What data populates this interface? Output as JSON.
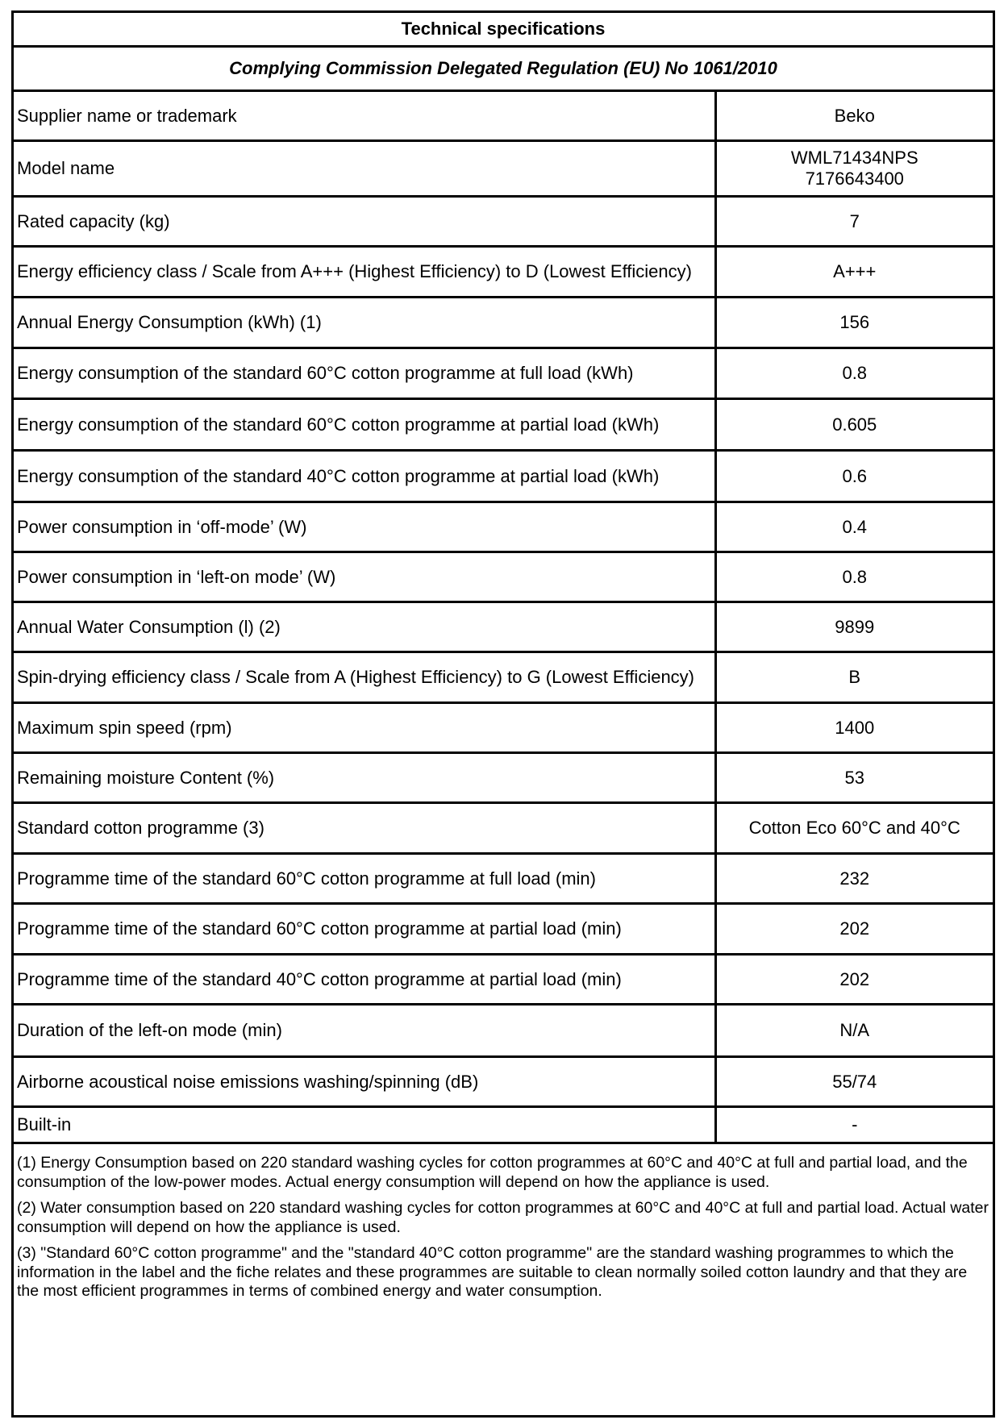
{
  "title": "Technical specifications",
  "subtitle": "Complying Commission Delegated Regulation (EU) No 1061/2010",
  "rows": [
    {
      "label": "Supplier name or trademark",
      "value": "Beko"
    },
    {
      "label": "Model name",
      "value": "WML71434NPS",
      "value2": "7176643400"
    },
    {
      "label": "Rated capacity (kg)",
      "value": "7"
    },
    {
      "label": "Energy efficiency class /  Scale from A+++ (Highest Efficiency) to D (Lowest Efficiency)",
      "value": "A+++"
    },
    {
      "label": "Annual Energy Consumption (kWh) (1)",
      "value": "156"
    },
    {
      "label": "Energy consumption of the standard 60°C cotton programme at full load  (kWh)",
      "value": "0.8"
    },
    {
      "label": "Energy consumption of the standard 60°C cotton programme at partial load (kWh)",
      "value": "0.605"
    },
    {
      "label": "Energy consumption of the standard 40°C cotton programme at partial load (kWh)",
      "value": "0.6"
    },
    {
      "label": "Power consumption in ‘off-mode’ (W)",
      "value": "0.4"
    },
    {
      "label": "Power consumption in ‘left-on mode’ (W)",
      "value": "0.8"
    },
    {
      "label": "Annual Water Consumption (l) (2)",
      "value": "9899"
    },
    {
      "label": "Spin-drying efficiency class / Scale from A (Highest Efficiency) to G (Lowest Efficiency)",
      "value": "B"
    },
    {
      "label": "Maximum spin speed (rpm)",
      "value": "1400"
    },
    {
      "label": "Remaining moisture Content (%)",
      "value": "53"
    },
    {
      "label": "Standard cotton programme (3)",
      "value": "Cotton Eco 60°C and 40°C"
    },
    {
      "label": "Programme time of the standard 60°C cotton programme at full load (min)",
      "value": "232"
    },
    {
      "label": "Programme time of the standard 60°C cotton programme at partial load (min)",
      "value": "202"
    },
    {
      "label": "Programme time of the standard 40°C cotton programme at partial load (min)",
      "value": "202"
    },
    {
      "label": "Duration of the left-on mode (min)",
      "value": "N/A"
    },
    {
      "label": "Airborne acoustical noise emissions washing/spinning (dB)",
      "value": "55/74"
    },
    {
      "label": "Built-in",
      "value": "-"
    }
  ],
  "notes": [
    "(1) Energy Consumption based on 220 standard washing cycles for cotton programmes at 60°C and 40°C at full and partial load, and the consumption of the low-power modes. Actual energy consumption will depend on how the appliance is used.",
    "(2) Water consumption based on 220 standard washing cycles for cotton programmes at 60°C and 40°C at full and partial load. Actual water consumption will depend on how the appliance is used.",
    "(3) \"Standard 60°C cotton programme\" and the \"standard 40°C cotton programme\" are the standard washing programmes to which the information in the label and the fiche relates and these programmes are suitable to clean normally soiled cotton laundry and that they are the most efficient programmes in terms of combined energy and water consumption."
  ]
}
